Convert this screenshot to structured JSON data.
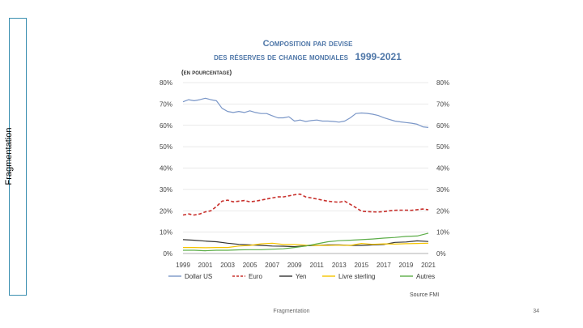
{
  "slide": {
    "side_label": "Fragmentation",
    "footer": "Fragmentation",
    "page_number": "34"
  },
  "chart_data": {
    "type": "line",
    "title_line1": "Composition par devise",
    "title_line2": "des réserves de change mondiales",
    "title_years": "1999-2021",
    "subtitle": "(en pourcentage)",
    "source": "Source FMI",
    "xlim": [
      1999,
      2021
    ],
    "ylim": [
      0,
      80
    ],
    "x_ticks": [
      "1999",
      "2001",
      "2003",
      "2005",
      "2007",
      "2009",
      "2011",
      "2013",
      "2015",
      "2017",
      "2019",
      "2021"
    ],
    "y_ticks": [
      "0%",
      "10%",
      "20%",
      "30%",
      "40%",
      "50%",
      "60%",
      "70%",
      "80%"
    ],
    "grid": true,
    "legend_position": "bottom",
    "series": [
      {
        "name": "Dollar US",
        "color": "#7b97c8",
        "dash": "solid",
        "x": [
          1999,
          1999.5,
          2000,
          2000.5,
          2001,
          2001.5,
          2002,
          2002.5,
          2003,
          2003.5,
          2004,
          2004.5,
          2005,
          2005.5,
          2006,
          2006.5,
          2007,
          2007.5,
          2008,
          2008.5,
          2009,
          2009.5,
          2010,
          2010.5,
          2011,
          2011.5,
          2012,
          2012.5,
          2013,
          2013.5,
          2014,
          2014.5,
          2015,
          2015.5,
          2016,
          2016.5,
          2017,
          2017.5,
          2018,
          2018.5,
          2019,
          2019.5,
          2020,
          2020.5,
          2021
        ],
        "y": [
          71,
          72,
          71.5,
          72,
          72.7,
          72,
          71.5,
          68,
          66.5,
          66,
          66.5,
          66,
          66.8,
          66,
          65.5,
          65.5,
          64.5,
          63.5,
          63.5,
          64,
          62,
          62.5,
          61.8,
          62.2,
          62.5,
          62,
          62,
          61.8,
          61.5,
          62,
          63.5,
          65.5,
          65.8,
          65.6,
          65.2,
          64.6,
          63.6,
          62.8,
          62,
          61.6,
          61.3,
          61,
          60.5,
          59.3,
          59
        ]
      },
      {
        "name": "Euro",
        "color": "#c8302c",
        "dash": "dashed",
        "x": [
          1999,
          1999.5,
          2000,
          2000.5,
          2001,
          2001.5,
          2002,
          2002.5,
          2003,
          2003.5,
          2004,
          2004.5,
          2005,
          2005.5,
          2006,
          2006.5,
          2007,
          2007.5,
          2008,
          2008.5,
          2009,
          2009.5,
          2010,
          2010.5,
          2011,
          2011.5,
          2012,
          2012.5,
          2013,
          2013.5,
          2014,
          2014.5,
          2015,
          2015.5,
          2016,
          2016.5,
          2017,
          2017.5,
          2018,
          2018.5,
          2019,
          2019.5,
          2020,
          2020.5,
          2021
        ],
        "y": [
          18,
          18.5,
          18,
          18.5,
          19.5,
          20,
          22,
          24.5,
          25,
          24.2,
          24.5,
          24.8,
          24.2,
          24.5,
          25,
          25.5,
          26,
          26.5,
          26.5,
          27,
          27.5,
          27.8,
          26.5,
          26,
          25.5,
          25,
          24.5,
          24.2,
          24,
          24.5,
          23,
          21.5,
          19.8,
          19.6,
          19.5,
          19.4,
          19.6,
          20,
          20.2,
          20.3,
          20.3,
          20.2,
          20.5,
          20.8,
          20.5
        ]
      },
      {
        "name": "Yen",
        "color": "#333333",
        "dash": "solid",
        "x": [
          1999,
          2000,
          2001,
          2002,
          2003,
          2004,
          2005,
          2006,
          2007,
          2008,
          2009,
          2010,
          2011,
          2012,
          2013,
          2014,
          2015,
          2016,
          2017,
          2018,
          2019,
          2020,
          2021
        ],
        "y": [
          6.5,
          6.2,
          5.8,
          5.5,
          4.8,
          4.3,
          4,
          3.8,
          3.5,
          3.4,
          3.2,
          3.6,
          3.8,
          4,
          4,
          3.8,
          3.8,
          4,
          4.2,
          5.2,
          5.4,
          5.9,
          5.6
        ]
      },
      {
        "name": "Livre sterling",
        "color": "#f5c400",
        "dash": "solid",
        "x": [
          1999,
          2000,
          2001,
          2002,
          2003,
          2004,
          2005,
          2006,
          2007,
          2008,
          2009,
          2010,
          2011,
          2012,
          2013,
          2014,
          2015,
          2016,
          2017,
          2018,
          2019,
          2020,
          2021
        ],
        "y": [
          2.8,
          2.8,
          2.7,
          2.8,
          2.8,
          3.5,
          3.8,
          4.5,
          4.8,
          4.2,
          4.2,
          3.9,
          3.8,
          3.8,
          3.9,
          3.8,
          4.7,
          4.3,
          4.5,
          4.4,
          4.6,
          4.7,
          4.8
        ]
      },
      {
        "name": "Autres",
        "color": "#5cad48",
        "dash": "solid",
        "x": [
          1999,
          2000,
          2001,
          2002,
          2003,
          2004,
          2005,
          2006,
          2007,
          2008,
          2009,
          2010,
          2011,
          2012,
          2013,
          2014,
          2015,
          2016,
          2017,
          2018,
          2019,
          2020,
          2021
        ],
        "y": [
          1.5,
          1.5,
          1.3,
          1.5,
          1.5,
          1.7,
          1.8,
          1.8,
          2,
          2.2,
          2.8,
          3.5,
          4.5,
          5.5,
          6,
          6.2,
          6.5,
          6.8,
          7.2,
          7.5,
          8,
          8.2,
          9.5
        ]
      }
    ]
  }
}
